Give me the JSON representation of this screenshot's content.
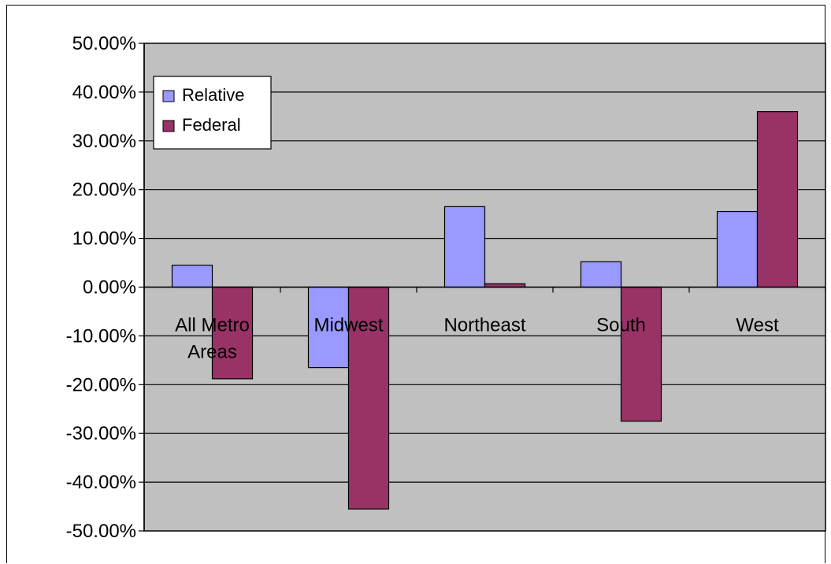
{
  "chart_data": {
    "type": "bar",
    "categories": [
      [
        "All Metro",
        "Areas"
      ],
      [
        "Midwest"
      ],
      [
        "Northeast"
      ],
      [
        "South"
      ],
      [
        "West"
      ]
    ],
    "series": [
      {
        "name": "Relative",
        "values": [
          4.5,
          -16.5,
          16.5,
          5.2,
          15.5
        ],
        "color": "#9999ff"
      },
      {
        "name": "Federal",
        "values": [
          -18.8,
          -45.5,
          0.7,
          -27.5,
          36.0
        ],
        "color": "#993366"
      }
    ],
    "ylim": [
      -50,
      50
    ],
    "yticks": [
      50,
      40,
      30,
      20,
      10,
      0,
      -10,
      -20,
      -30,
      -40,
      -50
    ],
    "ytick_labels": [
      "50.00%",
      "40.00%",
      "30.00%",
      "20.00%",
      "10.00%",
      "0.00%",
      "-10.00%",
      "-20.00%",
      "-30.00%",
      "-40.00%",
      "-50.00%"
    ],
    "grid": true,
    "plot_background": "#c0c0c0",
    "legend_position": "top-left"
  }
}
